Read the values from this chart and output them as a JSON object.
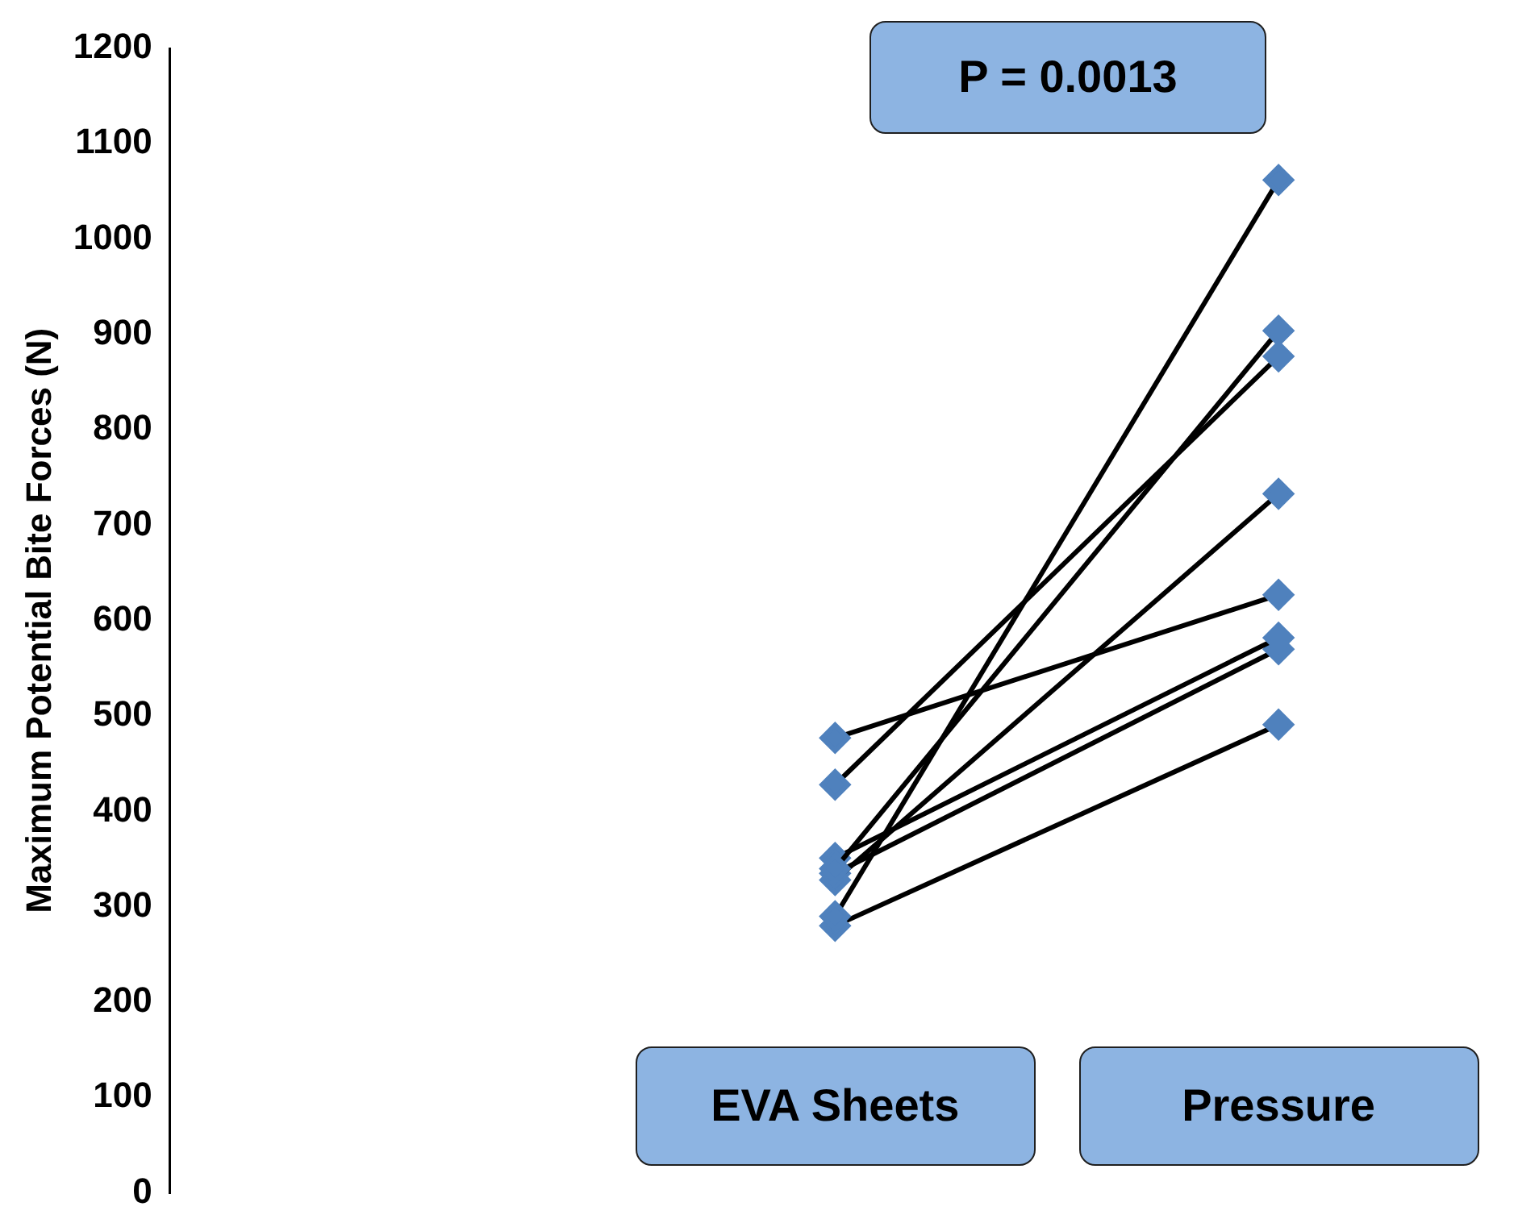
{
  "chart_data": {
    "type": "line",
    "ylabel": "Maximum Potential Bite Forces (N)",
    "categories": [
      null,
      "EVA Sheets",
      "Pressure"
    ],
    "series": [
      {
        "color": "#4f81bd",
        "values": [
          null,
          477,
          627
        ]
      },
      {
        "color": "#4f81bd",
        "values": [
          null,
          428,
          877
        ]
      },
      {
        "color": "#4f81bd",
        "values": [
          null,
          290,
          1062
        ]
      },
      {
        "color": "#4f81bd",
        "values": [
          null,
          340,
          904
        ]
      },
      {
        "color": "#4f81bd",
        "values": [
          null,
          328,
          733
        ]
      },
      {
        "color": "#4f81bd",
        "values": [
          null,
          351,
          582
        ]
      },
      {
        "color": "#4f81bd",
        "values": [
          null,
          335,
          570
        ]
      },
      {
        "color": "#4f81bd",
        "values": [
          null,
          280,
          491
        ]
      }
    ],
    "ylim": [
      0,
      1200
    ],
    "yticks": [
      0,
      100,
      200,
      300,
      400,
      500,
      600,
      700,
      800,
      900,
      1000,
      1100,
      1200
    ],
    "annotations": [
      "P = 0.0013"
    ],
    "grid": false,
    "legend": false,
    "marker": "diamond",
    "line_style": "solid"
  }
}
